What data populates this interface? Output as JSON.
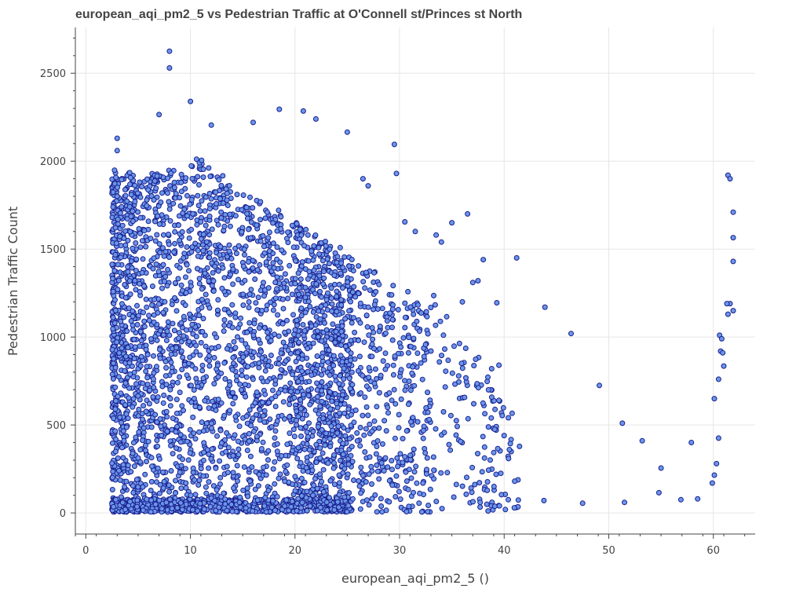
{
  "chart_data": {
    "type": "scatter",
    "title": "european_aqi_pm2_5 vs Pedestrian Traffic at O'Connell st/Princes st North",
    "xlabel": "european_aqi_pm2_5 ()",
    "ylabel": "Pedestrian Traffic Count",
    "xlim": [
      -1,
      64
    ],
    "ylim": [
      -120,
      2760
    ],
    "x_ticks": [
      0,
      10,
      20,
      30,
      40,
      50,
      60
    ],
    "y_ticks": [
      0,
      500,
      1000,
      1500,
      2000,
      2500
    ],
    "grid": true,
    "marker_fill": "#6b96e8",
    "marker_edge": "#1a1f8f",
    "points_note_density": {
      "dense_region": {
        "x": [
          3,
          25
        ],
        "y": [
          20,
          2000
        ]
      },
      "sparse_region": {
        "x": [
          25,
          42
        ],
        "y": [
          30,
          1700
        ]
      }
    },
    "points": [
      [
        8.0,
        2625
      ],
      [
        8.0,
        2530
      ],
      [
        10.0,
        2340
      ],
      [
        7.0,
        2265
      ],
      [
        18.5,
        2295
      ],
      [
        20.8,
        2285
      ],
      [
        12.0,
        2205
      ],
      [
        16.0,
        2220
      ],
      [
        22.0,
        2240
      ],
      [
        25.0,
        2165
      ],
      [
        3.0,
        2130
      ],
      [
        3.0,
        2060
      ],
      [
        29.5,
        2095
      ],
      [
        29.7,
        1930
      ],
      [
        26.5,
        1900
      ],
      [
        27.0,
        1860
      ],
      [
        30.5,
        1655
      ],
      [
        31.5,
        1600
      ],
      [
        33.5,
        1580
      ],
      [
        35.0,
        1650
      ],
      [
        36.5,
        1700
      ],
      [
        34.0,
        1540
      ],
      [
        38.0,
        1440
      ],
      [
        41.2,
        1450
      ],
      [
        37.5,
        1320
      ],
      [
        43.9,
        1170
      ],
      [
        46.4,
        1020
      ],
      [
        49.1,
        725
      ],
      [
        51.3,
        510
      ],
      [
        53.2,
        410
      ],
      [
        57.9,
        400
      ],
      [
        55.0,
        255
      ],
      [
        54.8,
        115
      ],
      [
        56.9,
        75
      ],
      [
        58.5,
        80
      ],
      [
        51.5,
        60
      ],
      [
        47.5,
        55
      ],
      [
        43.8,
        70
      ],
      [
        39.5,
        640
      ],
      [
        40.0,
        440
      ],
      [
        40.5,
        360
      ],
      [
        41.0,
        180
      ],
      [
        38.5,
        700
      ],
      [
        38.8,
        820
      ],
      [
        39.5,
        840
      ],
      [
        37.0,
        1310
      ],
      [
        36.0,
        1200
      ],
      [
        39.3,
        1195
      ],
      [
        61.4,
        1920
      ],
      [
        61.6,
        1900
      ],
      [
        61.9,
        1710
      ],
      [
        61.9,
        1565
      ],
      [
        61.9,
        1430
      ],
      [
        61.9,
        1150
      ],
      [
        61.6,
        1190
      ],
      [
        61.3,
        1190
      ],
      [
        61.4,
        1130
      ],
      [
        60.6,
        1010
      ],
      [
        60.8,
        990
      ],
      [
        60.7,
        920
      ],
      [
        60.9,
        910
      ],
      [
        61.0,
        835
      ],
      [
        60.5,
        760
      ],
      [
        60.1,
        650
      ],
      [
        60.5,
        425
      ],
      [
        60.3,
        280
      ],
      [
        60.1,
        215
      ],
      [
        59.9,
        170
      ]
    ]
  }
}
